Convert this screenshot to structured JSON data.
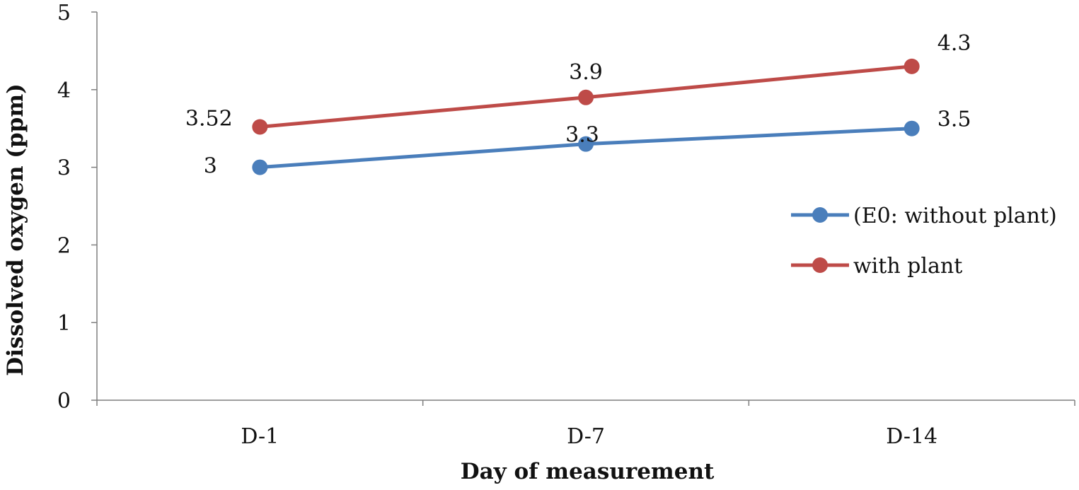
{
  "chart_data": {
    "type": "line",
    "categories": [
      "D-1",
      "D-7",
      "D-14"
    ],
    "series": [
      {
        "name": "(E0: without plant)",
        "values": [
          3,
          3.3,
          3.5
        ],
        "labels": [
          "3",
          "3.3",
          "3.5"
        ],
        "color": "#4a7ebb"
      },
      {
        "name": "with plant",
        "values": [
          3.52,
          3.9,
          4.3
        ],
        "labels": [
          "3.52",
          "3.9",
          "4.3"
        ],
        "color": "#be4b48"
      }
    ],
    "xlabel": "Day of measurement",
    "ylabel": "Dissolved oxygen (ppm)",
    "ylim": [
      0,
      5
    ],
    "yticks": [
      "0",
      "1",
      "2",
      "3",
      "4",
      "5"
    ],
    "grid": false,
    "legend_position": "right"
  }
}
